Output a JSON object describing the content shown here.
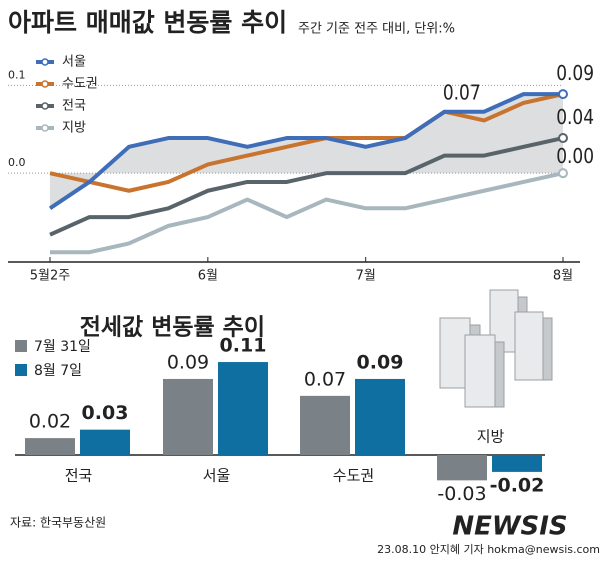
{
  "title": "아파트 매매값 변동률 추이",
  "subtitle": "주간 기준 전주 대비, 단위:%",
  "source": "자료: 한국부동산원",
  "credit": "23.08.10 안지혜 기자 hokma@newsis.com",
  "watermark": "NEWSIS",
  "chart_data": [
    {
      "type": "line",
      "categories": [
        "5월2주",
        null,
        null,
        null,
        "6월",
        null,
        null,
        null,
        "7월",
        null,
        null,
        null,
        null,
        "8월"
      ],
      "ylim": [
        -0.1,
        0.13
      ],
      "yticks": [
        0.1,
        {
          "value": 0,
          "label": "0.0"
        }
      ],
      "grid": true,
      "legend": "top-left",
      "series": [
        {
          "name": "서울",
          "color": "#3f6db8",
          "values": [
            -0.04,
            -0.01,
            0.03,
            0.04,
            0.04,
            0.03,
            0.04,
            0.04,
            0.03,
            0.04,
            0.07,
            0.07,
            0.09,
            0.09
          ],
          "value_labels": [
            null,
            null,
            null,
            null,
            null,
            null,
            null,
            null,
            null,
            null,
            null,
            "0.07",
            null,
            "0.09"
          ]
        },
        {
          "name": "수도권",
          "color": "#c8732e",
          "values": [
            0.0,
            -0.01,
            -0.02,
            -0.01,
            0.01,
            0.02,
            0.03,
            0.04,
            0.04,
            0.04,
            0.07,
            0.06,
            0.08,
            0.09
          ]
        },
        {
          "name": "전국",
          "color": "#59646a",
          "values": [
            -0.07,
            -0.05,
            -0.05,
            -0.04,
            -0.02,
            -0.01,
            -0.01,
            0.0,
            0.0,
            0.0,
            0.02,
            0.02,
            0.03,
            0.04
          ],
          "value_labels": [
            null,
            null,
            null,
            null,
            null,
            null,
            null,
            null,
            null,
            null,
            null,
            null,
            null,
            "0.04"
          ]
        },
        {
          "name": "지방",
          "color": "#a8b7be",
          "values": [
            -0.09,
            -0.09,
            -0.08,
            -0.06,
            -0.05,
            -0.03,
            -0.05,
            -0.03,
            -0.04,
            -0.04,
            -0.03,
            -0.02,
            -0.01,
            0.0
          ],
          "value_labels": [
            null,
            null,
            null,
            null,
            null,
            null,
            null,
            null,
            null,
            null,
            null,
            null,
            null,
            "0.00"
          ]
        }
      ]
    },
    {
      "type": "bar",
      "title": "전세값 변동률 추이",
      "categories": [
        "전국",
        "서울",
        "수도권",
        "지방"
      ],
      "series": [
        {
          "name": "7월 31일",
          "color": "#7b8287",
          "values": [
            0.02,
            0.09,
            0.07,
            -0.03
          ]
        },
        {
          "name": "8월 7일",
          "color": "#0f6fa1",
          "values": [
            0.03,
            0.11,
            0.09,
            -0.02
          ]
        }
      ]
    }
  ]
}
